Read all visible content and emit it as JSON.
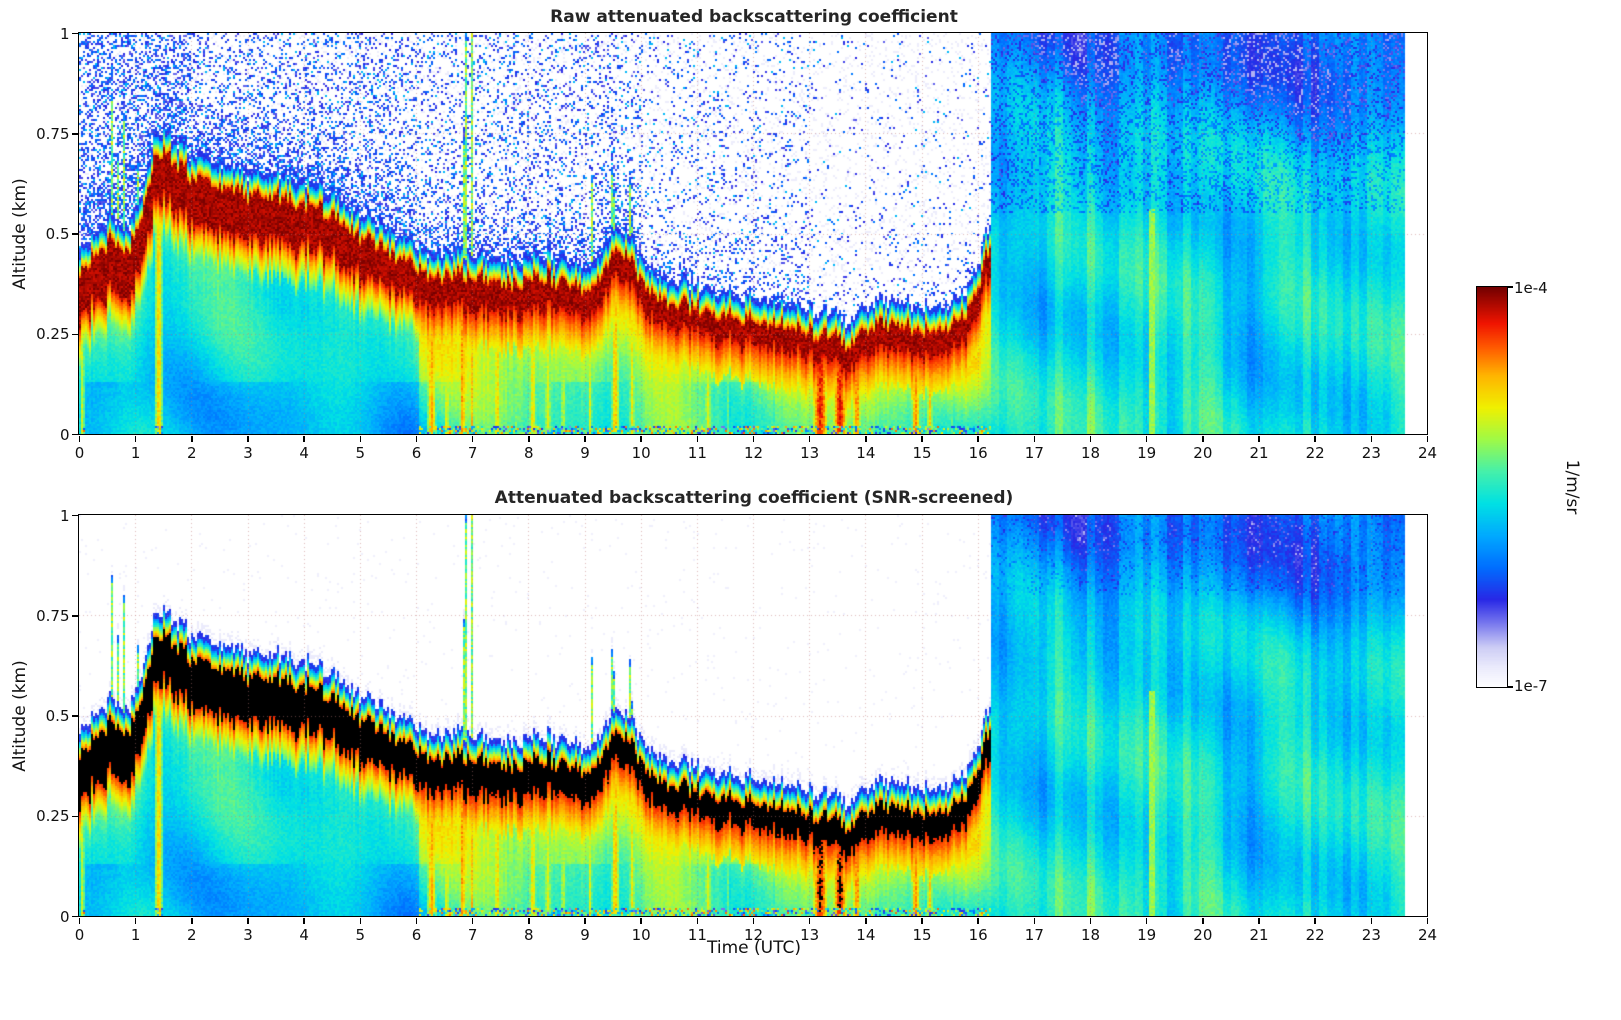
{
  "figure": {
    "background": "#ffffff"
  },
  "chart_data": {
    "type": "heatmap",
    "panels": [
      {
        "title": "Raw attenuated backscattering coefficient",
        "screened": false
      },
      {
        "title": "Attenuated backscattering coefficient (SNR-screened)",
        "screened": true
      }
    ],
    "x_axis": {
      "label": "Time (UTC)",
      "min": 0,
      "max": 24,
      "ticks": [
        0,
        1,
        2,
        3,
        4,
        5,
        6,
        7,
        8,
        9,
        10,
        11,
        12,
        13,
        14,
        15,
        16,
        17,
        18,
        19,
        20,
        21,
        22,
        23,
        24
      ]
    },
    "y_axis": {
      "label": "Altitude (km)",
      "min": 0,
      "max": 1,
      "ticks": [
        0,
        0.25,
        0.5,
        0.75,
        1
      ],
      "tick_labels": [
        "0",
        "0.25",
        "0.5",
        "0.75",
        "1"
      ]
    },
    "colorbar": {
      "unit_label": "1/m/sr",
      "max_label": "1e-4",
      "min_label": "1e-7",
      "scale": "log",
      "stops": [
        [
          0.0,
          "#ffffff"
        ],
        [
          0.05,
          "#ebebfc"
        ],
        [
          0.1,
          "#cdcdf5"
        ],
        [
          0.16,
          "#7878ee"
        ],
        [
          0.22,
          "#2828e6"
        ],
        [
          0.3,
          "#006eff"
        ],
        [
          0.38,
          "#00aaff"
        ],
        [
          0.46,
          "#00e1e4"
        ],
        [
          0.54,
          "#46f0aa"
        ],
        [
          0.62,
          "#a0fa46"
        ],
        [
          0.7,
          "#f0f000"
        ],
        [
          0.78,
          "#ffb400"
        ],
        [
          0.85,
          "#ff5a00"
        ],
        [
          0.91,
          "#f01400"
        ],
        [
          1.0,
          "#730000"
        ]
      ]
    },
    "field": {
      "data_end_utc": 23.6,
      "rain_start_utc": 16.22,
      "aerosol_layer_top_km": [
        [
          0,
          0.46
        ],
        [
          0.2,
          0.5
        ],
        [
          0.4,
          0.52
        ],
        [
          0.55,
          0.54
        ],
        [
          0.9,
          0.52
        ],
        [
          1.05,
          0.56
        ],
        [
          1.2,
          0.64
        ],
        [
          1.35,
          0.76
        ],
        [
          1.5,
          0.77
        ],
        [
          1.7,
          0.74
        ],
        [
          2.0,
          0.7
        ],
        [
          2.4,
          0.68
        ],
        [
          2.8,
          0.665
        ],
        [
          3.2,
          0.655
        ],
        [
          3.6,
          0.65
        ],
        [
          4.0,
          0.64
        ],
        [
          4.3,
          0.625
        ],
        [
          4.6,
          0.59
        ],
        [
          4.9,
          0.56
        ],
        [
          5.2,
          0.54
        ],
        [
          5.5,
          0.515
        ],
        [
          5.8,
          0.49
        ],
        [
          6.1,
          0.46
        ],
        [
          6.4,
          0.455
        ],
        [
          6.8,
          0.46
        ],
        [
          7.1,
          0.45
        ],
        [
          7.4,
          0.445
        ],
        [
          7.7,
          0.43
        ],
        [
          8.0,
          0.44
        ],
        [
          8.3,
          0.45
        ],
        [
          8.6,
          0.44
        ],
        [
          8.9,
          0.42
        ],
        [
          9.2,
          0.43
        ],
        [
          9.45,
          0.5
        ],
        [
          9.6,
          0.52
        ],
        [
          9.8,
          0.5
        ],
        [
          9.95,
          0.46
        ],
        [
          10.1,
          0.42
        ],
        [
          10.4,
          0.4
        ],
        [
          10.7,
          0.385
        ],
        [
          11.0,
          0.37
        ],
        [
          11.4,
          0.36
        ],
        [
          11.8,
          0.35
        ],
        [
          12.2,
          0.34
        ],
        [
          12.6,
          0.33
        ],
        [
          13.0,
          0.315
        ],
        [
          13.4,
          0.295
        ],
        [
          13.7,
          0.285
        ],
        [
          14.0,
          0.325
        ],
        [
          14.4,
          0.33
        ],
        [
          14.7,
          0.325
        ],
        [
          15.0,
          0.315
        ],
        [
          15.3,
          0.315
        ],
        [
          15.6,
          0.33
        ],
        [
          15.85,
          0.36
        ],
        [
          16.0,
          0.41
        ],
        [
          16.1,
          0.46
        ],
        [
          16.22,
          0.55
        ]
      ],
      "layer_core_thickness_km": [
        [
          0,
          0.12
        ],
        [
          3,
          0.12
        ],
        [
          5,
          0.1
        ],
        [
          6,
          0.085
        ],
        [
          8,
          0.075
        ],
        [
          10,
          0.065
        ],
        [
          12,
          0.06
        ],
        [
          16,
          0.065
        ]
      ],
      "precip_shafts_utc": [
        [
          0.06,
          0.05,
          0.7
        ],
        [
          1.42,
          0.08,
          0.78
        ],
        [
          6.28,
          0.09,
          0.82
        ],
        [
          6.55,
          0.06,
          0.72
        ],
        [
          6.83,
          0.06,
          0.85
        ],
        [
          7.0,
          0.045,
          0.8
        ],
        [
          7.45,
          0.07,
          0.78
        ],
        [
          7.78,
          0.05,
          0.62
        ],
        [
          8.08,
          0.08,
          0.75
        ],
        [
          8.35,
          0.07,
          0.72
        ],
        [
          8.62,
          0.06,
          0.68
        ],
        [
          9.1,
          0.05,
          0.72
        ],
        [
          9.55,
          0.08,
          0.8
        ],
        [
          9.85,
          0.06,
          0.74
        ],
        [
          10.15,
          0.04,
          0.6
        ],
        [
          10.45,
          0.05,
          0.62
        ],
        [
          11.2,
          0.07,
          0.72
        ],
        [
          11.55,
          0.04,
          0.6
        ],
        [
          12.1,
          0.04,
          0.55
        ],
        [
          13.2,
          0.14,
          0.95
        ],
        [
          13.55,
          0.13,
          0.96
        ],
        [
          13.85,
          0.08,
          0.86
        ],
        [
          14.9,
          0.08,
          0.85
        ],
        [
          15.15,
          0.06,
          0.78
        ],
        [
          15.55,
          0.04,
          0.6
        ]
      ],
      "updraft_spikes_utc": [
        [
          0.58,
          0.03,
          0.88
        ],
        [
          0.68,
          0.02,
          0.91
        ],
        [
          0.8,
          0.025,
          0.8
        ],
        [
          1.06,
          0.025,
          0.73
        ],
        [
          6.88,
          0.03,
          1.06
        ],
        [
          7.0,
          0.018,
          1.06
        ],
        [
          9.12,
          0.015,
          0.97
        ],
        [
          9.5,
          0.055,
          0.68
        ],
        [
          9.82,
          0.04,
          0.66
        ]
      ],
      "rain_green_streak_utc": [
        19.1,
        0.045,
        0.56
      ]
    }
  }
}
